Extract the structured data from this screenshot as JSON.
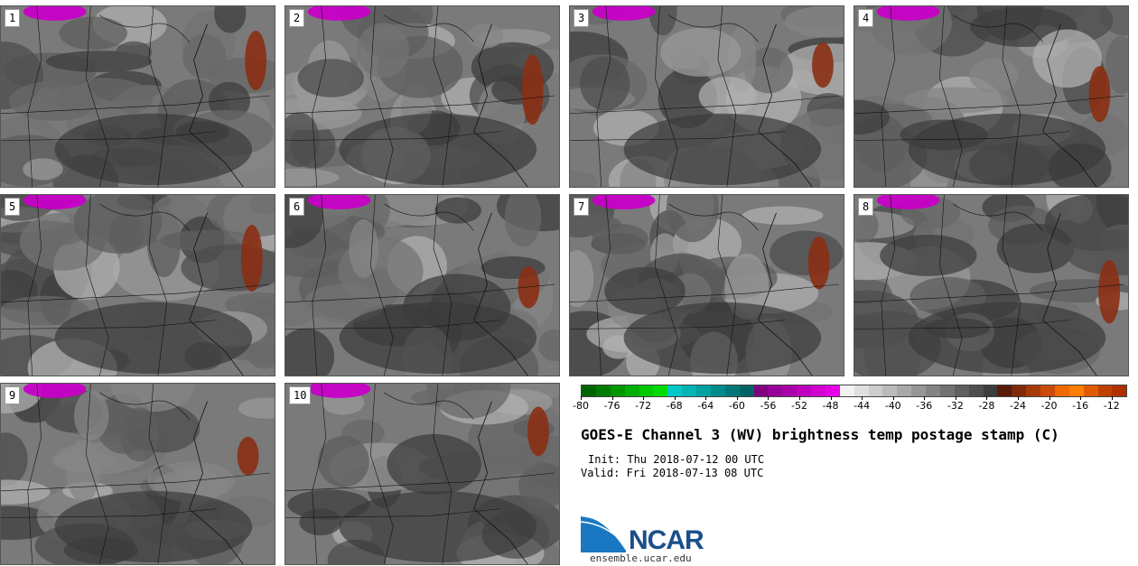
{
  "title": "GOES-E Channel 3 (WV) brightness temp postage stamp (C)",
  "init_line": "Init: Thu 2018-07-12 00 UTC",
  "valid_line": "Valid: Fri 2018-07-13 08 UTC",
  "logo": {
    "name": "NCAR",
    "url": "ensemble.ucar.edu"
  },
  "panels": [
    "1",
    "2",
    "3",
    "4",
    "5",
    "6",
    "7",
    "8",
    "9",
    "10"
  ],
  "colorbar": {
    "ticks": [
      "-80",
      "-76",
      "-72",
      "-68",
      "-64",
      "-60",
      "-56",
      "-52",
      "-48",
      "-44",
      "-40",
      "-36",
      "-32",
      "-28",
      "-24",
      "-20",
      "-16",
      "-12"
    ],
    "tick_values": [
      -80,
      -76,
      -72,
      -68,
      -64,
      -60,
      -56,
      -52,
      -48,
      -44,
      -40,
      -36,
      -32,
      -28,
      -24,
      -20,
      -16,
      -12
    ],
    "min": -80,
    "max": -10,
    "colors": [
      "#006400",
      "#007a00",
      "#009600",
      "#00b000",
      "#00c800",
      "#00dc00",
      "#00c8c8",
      "#00b4b4",
      "#00a0a0",
      "#008c8c",
      "#007878",
      "#006464",
      "#800080",
      "#960096",
      "#aa00aa",
      "#be00be",
      "#d200d2",
      "#e600e6",
      "#f2f2f2",
      "#e0e0e0",
      "#cdcdcd",
      "#bbbbbb",
      "#a8a8a8",
      "#969696",
      "#848484",
      "#727272",
      "#606060",
      "#4e4e4e",
      "#3c3c3c",
      "#5a1a0a",
      "#802a0a",
      "#a63a0a",
      "#cc4a0a",
      "#ee6a00",
      "#ff7f00",
      "#e05a00",
      "#c04000",
      "#b03000"
    ]
  }
}
